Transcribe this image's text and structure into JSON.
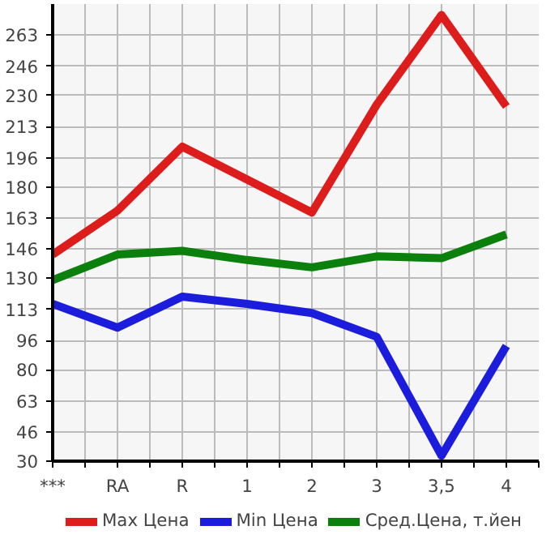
{
  "chart_data": {
    "type": "line",
    "categories": [
      "***",
      "RA",
      "R",
      "1",
      "2",
      "3",
      "3,5",
      "4"
    ],
    "series": [
      {
        "name": "Max Цена",
        "color": "#dd1c1c",
        "values": [
          143,
          167,
          202,
          184,
          166,
          225,
          274,
          224
        ]
      },
      {
        "name": "Min Цена",
        "color": "#1c1cdd",
        "values": [
          116,
          103,
          120,
          116,
          111,
          98,
          33,
          93
        ]
      },
      {
        "name": "Сред.Цена, т.йен",
        "color": "#0c800c",
        "values": [
          129,
          143,
          145,
          140,
          136,
          142,
          141,
          154
        ]
      }
    ],
    "ylim": [
      30,
      280
    ],
    "yticks": [
      30,
      46,
      63,
      80,
      96,
      113,
      130,
      146,
      163,
      180,
      196,
      213,
      230,
      246,
      263
    ],
    "grid": true,
    "legend": "bottom",
    "marker": "none",
    "line_style": "solid"
  }
}
